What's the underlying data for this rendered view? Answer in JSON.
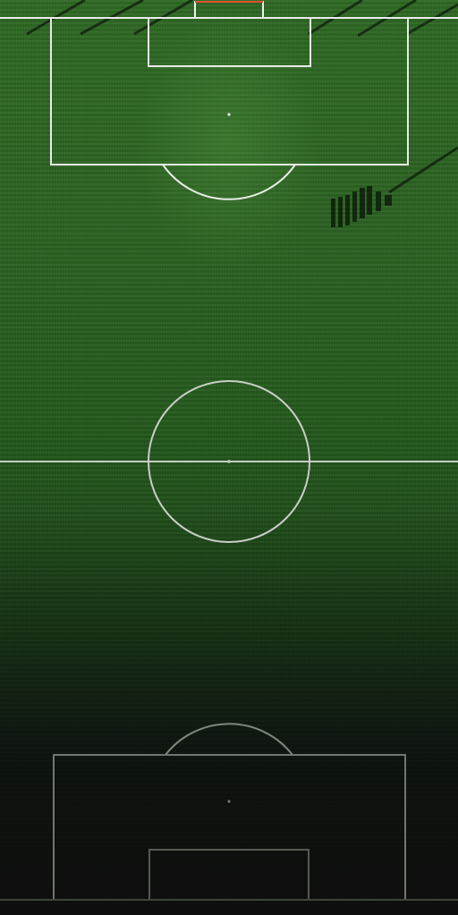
{
  "scene": {
    "subject": "aerial-view-soccer-pitch",
    "colors": {
      "grass_light": "#2f6a24",
      "grass_dark": "#1f4b19",
      "line_white": "#e8ece6",
      "line_faded": "#9aa396",
      "vignette": "#121812"
    }
  }
}
